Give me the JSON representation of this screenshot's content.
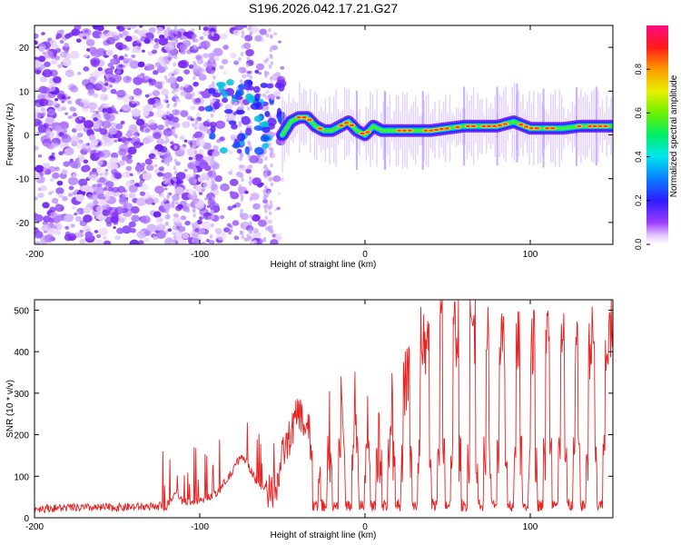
{
  "title": "S196.2026.042.17.21.G27",
  "chart_data": [
    {
      "type": "heatmap",
      "xlabel": "Height of straight line (km)",
      "ylabel": "Frequency (Hz)",
      "xlim": [
        -200,
        150
      ],
      "ylim": [
        -25,
        25
      ],
      "xticks": [
        -200,
        -100,
        0,
        100
      ],
      "yticks": [
        -20,
        -10,
        0,
        10,
        20
      ],
      "colorbar": {
        "label": "Normalized spectral amplitude",
        "ticks": [
          0.0,
          0.2,
          0.4,
          0.6,
          0.8
        ],
        "tick_labels": [
          "0.0",
          "0.2",
          "0.4",
          "0.6",
          "0.8"
        ],
        "range": [
          0,
          1
        ],
        "colormap": "rainbow (purple-blue-cyan-green-yellow-red-magenta)"
      },
      "ridge": {
        "description": "dominant frequency track vs height",
        "x": [
          -50,
          -45,
          -40,
          -35,
          -30,
          -25,
          -20,
          -15,
          -10,
          -5,
          0,
          5,
          10,
          20,
          30,
          40,
          50,
          60,
          70,
          80,
          90,
          100,
          110,
          120,
          130,
          140,
          150
        ],
        "y": [
          0,
          3,
          4,
          4,
          2,
          1,
          1,
          2,
          3,
          1,
          0,
          2,
          1,
          1,
          1,
          1,
          1.5,
          2,
          2,
          2,
          3,
          1.5,
          1.5,
          1.5,
          2,
          2,
          2
        ]
      },
      "noise_region_x": [
        -200,
        -50
      ]
    },
    {
      "type": "line",
      "xlabel": "Height of straight line (km)",
      "ylabel": "SNR (10 * v/v)",
      "xlim": [
        -200,
        150
      ],
      "ylim": [
        0,
        525
      ],
      "xticks": [
        -200,
        -100,
        0,
        100
      ],
      "yticks": [
        0,
        100,
        200,
        300,
        400,
        500
      ],
      "series": [
        {
          "name": "SNR",
          "color": "#e82020",
          "x": [
            -200,
            -180,
            -160,
            -140,
            -120,
            -115,
            -110,
            -100,
            -90,
            -80,
            -75,
            -70,
            -65,
            -60,
            -55,
            -50,
            -45,
            -40,
            -35,
            -30,
            -25,
            -20,
            -15,
            -10,
            -5,
            0,
            5,
            10,
            15,
            20,
            25,
            30,
            35,
            40,
            45,
            50,
            55,
            60,
            65,
            70,
            75,
            80,
            85,
            90,
            95,
            100,
            105,
            110,
            115,
            120,
            125,
            130,
            135,
            140,
            145,
            150
          ],
          "y": [
            20,
            22,
            22,
            24,
            26,
            60,
            35,
            40,
            55,
            110,
            150,
            120,
            80,
            70,
            50,
            150,
            200,
            260,
            200,
            290,
            260,
            290,
            300,
            280,
            290,
            260,
            240,
            260,
            220,
            380,
            320,
            420,
            420,
            440,
            460,
            470,
            450,
            480,
            460,
            450,
            440,
            460,
            430,
            440,
            420,
            430,
            420,
            440,
            400,
            420,
            400,
            430,
            420,
            430,
            400,
            460
          ],
          "dips_to_near_zero_at_x": [
            -30,
            -25,
            -18,
            -10,
            -2,
            5,
            12,
            20,
            30,
            42,
            50,
            60,
            70,
            78,
            88,
            97,
            106,
            115,
            124,
            132,
            142
          ]
        }
      ]
    }
  ]
}
